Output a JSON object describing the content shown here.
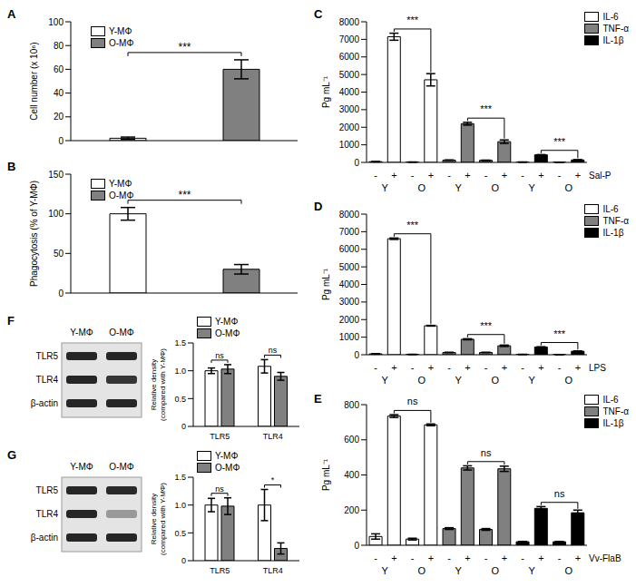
{
  "chart_data": [
    {
      "panel": "A",
      "type": "bar",
      "categories": [
        "Y-MΦ",
        "O-MΦ"
      ],
      "values": [
        2,
        60
      ],
      "errors": [
        1,
        8
      ],
      "colors": [
        "#ffffff",
        "#808080"
      ],
      "ylabel": "Cell number (x 10⁶)",
      "ylim": [
        0,
        100
      ],
      "yticks": [
        0,
        20,
        40,
        60,
        80,
        100
      ],
      "tick_labels": "y",
      "legend": "top-left",
      "significance": "***"
    },
    {
      "panel": "B",
      "type": "bar",
      "categories": [
        "Y-MΦ",
        "O-MΦ"
      ],
      "values": [
        100,
        30
      ],
      "errors": [
        8,
        6
      ],
      "colors": [
        "#ffffff",
        "#808080"
      ],
      "ylabel": "Phagocytosis (% of Y-MΦ)",
      "ylim": [
        0,
        150
      ],
      "yticks": [
        0,
        50,
        100,
        150
      ],
      "tick_labels": "y",
      "legend": "top-left",
      "significance": "***"
    },
    {
      "panel": "C",
      "type": "bar",
      "categories": [
        "-",
        "+",
        "-",
        "+",
        "-",
        "+",
        "-",
        "+",
        "-",
        "+",
        "-",
        "+"
      ],
      "groups": [
        "Y",
        "O",
        "Y",
        "O",
        "Y",
        "O"
      ],
      "xlabel": "Sal-P",
      "ylabel": "Pg mL⁻¹",
      "ylim": [
        0,
        8000
      ],
      "yticks": [
        0,
        1000,
        2000,
        3000,
        4000,
        5000,
        6000,
        7000,
        8000
      ],
      "legend": "top-right",
      "series": [
        {
          "name": "IL-6",
          "color": "#ffffff",
          "values": [
            40,
            7150,
            20,
            4700,
            null,
            null,
            null,
            null,
            null,
            null,
            null,
            null
          ],
          "errors": [
            10,
            200,
            5,
            350,
            null,
            null,
            null,
            null,
            null,
            null,
            null,
            null
          ],
          "significance": "***"
        },
        {
          "name": "TNF-α",
          "color": "#808080",
          "values": [
            null,
            null,
            null,
            null,
            130,
            2200,
            120,
            1180,
            null,
            null,
            null,
            null
          ],
          "errors": [
            null,
            null,
            null,
            null,
            10,
            80,
            10,
            100,
            null,
            null,
            null,
            null
          ],
          "significance": "***"
        },
        {
          "name": "IL-1β",
          "color": "#000000",
          "values": [
            null,
            null,
            null,
            null,
            null,
            null,
            null,
            null,
            20,
            430,
            10,
            140
          ],
          "errors": [
            null,
            null,
            null,
            null,
            null,
            null,
            null,
            null,
            5,
            15,
            5,
            20
          ],
          "significance": "***"
        }
      ]
    },
    {
      "panel": "D",
      "type": "bar",
      "categories": [
        "-",
        "+",
        "-",
        "+",
        "-",
        "+",
        "-",
        "+",
        "-",
        "+",
        "-",
        "+"
      ],
      "groups": [
        "Y",
        "O",
        "Y",
        "O",
        "Y",
        "O"
      ],
      "xlabel": "LPS",
      "ylabel": "Pg mL⁻¹",
      "ylim": [
        0,
        8000
      ],
      "yticks": [
        0,
        1000,
        2000,
        3000,
        4000,
        5000,
        6000,
        7000,
        8000
      ],
      "legend": "top-right",
      "series": [
        {
          "name": "IL-6",
          "color": "#ffffff",
          "values": [
            50,
            6600,
            20,
            1650,
            null,
            null,
            null,
            null,
            null,
            null,
            null,
            null
          ],
          "errors": [
            15,
            40,
            5,
            20,
            null,
            null,
            null,
            null,
            null,
            null,
            null,
            null
          ],
          "significance": "***"
        },
        {
          "name": "TNF-α",
          "color": "#808080",
          "values": [
            null,
            null,
            null,
            null,
            130,
            880,
            130,
            510,
            null,
            null,
            null,
            null
          ],
          "errors": [
            null,
            null,
            null,
            null,
            10,
            30,
            10,
            40,
            null,
            null,
            null,
            null
          ],
          "significance": "***"
        },
        {
          "name": "IL-1β",
          "color": "#000000",
          "values": [
            null,
            null,
            null,
            null,
            null,
            null,
            null,
            null,
            20,
            440,
            10,
            200
          ],
          "errors": [
            null,
            null,
            null,
            null,
            null,
            null,
            null,
            null,
            5,
            15,
            5,
            15
          ],
          "significance": "***"
        }
      ]
    },
    {
      "panel": "E",
      "type": "bar",
      "categories": [
        "-",
        "+",
        "-",
        "+",
        "-",
        "+",
        "-",
        "+",
        "-",
        "+",
        "-",
        "+"
      ],
      "groups": [
        "Y",
        "O",
        "Y",
        "O",
        "Y",
        "O"
      ],
      "xlabel": "Vv-FlaB",
      "ylabel": "Pg mL⁻¹",
      "ylim": [
        0,
        800
      ],
      "yticks": [
        0,
        200,
        400,
        600,
        800
      ],
      "legend": "top-right",
      "series": [
        {
          "name": "IL-6",
          "color": "#ffffff",
          "values": [
            50,
            735,
            35,
            685,
            null,
            null,
            null,
            null,
            null,
            null,
            null,
            null
          ],
          "errors": [
            15,
            8,
            5,
            5,
            null,
            null,
            null,
            null,
            null,
            null,
            null,
            null
          ],
          "significance": "ns"
        },
        {
          "name": "TNF-α",
          "color": "#808080",
          "values": [
            null,
            null,
            null,
            null,
            95,
            440,
            90,
            435,
            null,
            null,
            null,
            null
          ],
          "errors": [
            null,
            null,
            null,
            null,
            5,
            12,
            5,
            15,
            null,
            null,
            null,
            null
          ],
          "significance": "ns"
        },
        {
          "name": "IL-1β",
          "color": "#000000",
          "values": [
            null,
            null,
            null,
            null,
            null,
            null,
            null,
            null,
            20,
            210,
            20,
            185
          ],
          "errors": [
            null,
            null,
            null,
            null,
            null,
            null,
            null,
            null,
            2,
            10,
            2,
            15
          ],
          "significance": "ns"
        }
      ]
    },
    {
      "panel": "F",
      "type": "bar",
      "categories": [
        "TLR5",
        "TLR4"
      ],
      "series": [
        {
          "name": "Y-MΦ",
          "color": "#ffffff",
          "values": [
            1.0,
            1.08
          ],
          "errors": [
            0.05,
            0.12
          ]
        },
        {
          "name": "O-MΦ",
          "color": "#808080",
          "values": [
            1.03,
            0.9
          ],
          "errors": [
            0.08,
            0.07
          ]
        }
      ],
      "significance": [
        "ns",
        "ns"
      ],
      "ylabel": "Relative density (compared with Y-MΦ)",
      "ylim": [
        0,
        1.5
      ],
      "yticks": [
        0,
        0.5,
        {
          "value": 1,
          "label": "1.0"
        },
        1.5
      ],
      "legend": "top-left",
      "blot": {
        "lanes": [
          "Y-MΦ",
          "O-MΦ"
        ],
        "bands": [
          "TLR5",
          "TLR4",
          "β-actin"
        ]
      }
    },
    {
      "panel": "G",
      "type": "bar",
      "categories": [
        "TLR5",
        "TLR4"
      ],
      "series": [
        {
          "name": "Y-MΦ",
          "color": "#ffffff",
          "values": [
            1.0,
            1.0
          ],
          "errors": [
            0.12,
            0.28
          ]
        },
        {
          "name": "O-MΦ",
          "color": "#808080",
          "values": [
            0.98,
            0.22
          ],
          "errors": [
            0.15,
            0.1
          ]
        }
      ],
      "significance": [
        "ns",
        "*"
      ],
      "ylabel": "Relative density (compared with Y-MΦ)",
      "ylim": [
        0,
        1.5
      ],
      "yticks": [
        0,
        0.5,
        {
          "value": 1,
          "label": "1.0"
        },
        1.5
      ],
      "legend": "top-left",
      "blot": {
        "lanes": [
          "Y-MΦ",
          "O-MΦ"
        ],
        "bands": [
          "TLR5",
          "TLR4",
          "β-actin"
        ]
      }
    }
  ]
}
